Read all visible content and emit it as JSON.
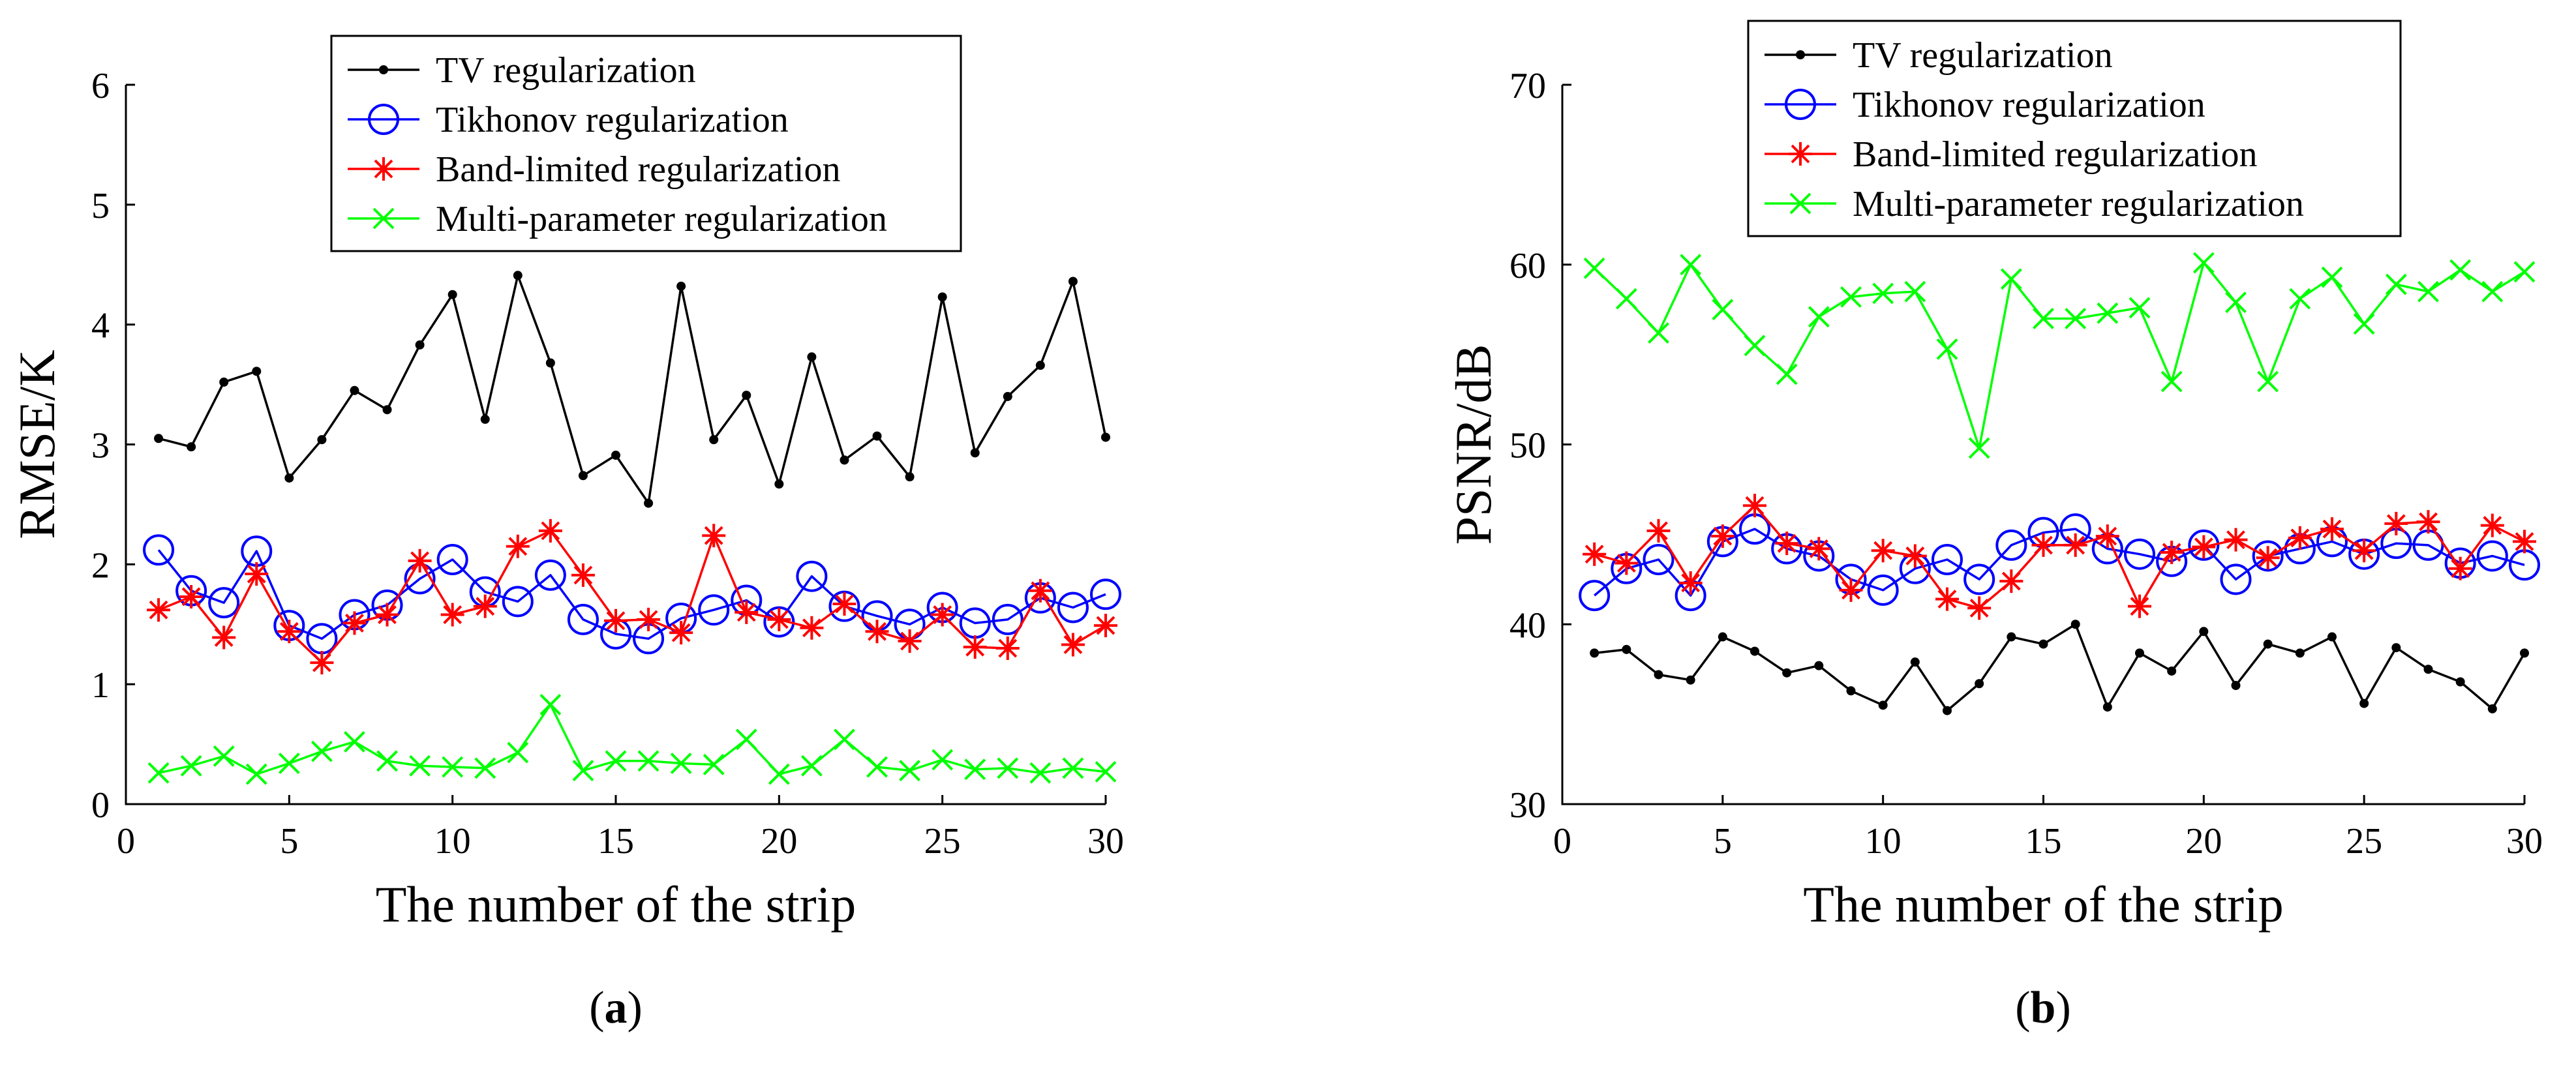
{
  "chart_data": [
    {
      "type": "line",
      "id": "a",
      "caption_letter": "a",
      "xlabel": "The number of the strip",
      "ylabel": "RMSE/K",
      "xlim": [
        0,
        30
      ],
      "ylim": [
        0,
        6
      ],
      "xticks": [
        0,
        5,
        10,
        15,
        20,
        25,
        30
      ],
      "yticks": [
        0,
        1,
        2,
        3,
        4,
        5,
        6
      ],
      "legend_position": "top-center",
      "x": [
        1,
        2,
        3,
        4,
        5,
        6,
        7,
        8,
        9,
        10,
        11,
        12,
        13,
        14,
        15,
        16,
        17,
        18,
        19,
        20,
        21,
        22,
        23,
        24,
        25,
        26,
        27,
        28,
        29,
        30
      ],
      "series": [
        {
          "name": "TV regularization",
          "color": "#000000",
          "marker": "dot",
          "values": [
            3.05,
            2.98,
            3.52,
            3.61,
            2.72,
            3.04,
            3.45,
            3.29,
            3.83,
            4.25,
            3.21,
            4.41,
            3.68,
            2.74,
            2.91,
            2.51,
            4.32,
            3.04,
            3.41,
            2.67,
            3.73,
            2.87,
            3.07,
            2.73,
            4.23,
            2.93,
            3.4,
            3.66,
            4.36,
            3.06
          ]
        },
        {
          "name": "Tikhonov regularization",
          "color": "#0000ff",
          "marker": "circle",
          "values": [
            2.12,
            1.78,
            1.68,
            2.11,
            1.49,
            1.38,
            1.58,
            1.66,
            1.88,
            2.04,
            1.77,
            1.69,
            1.91,
            1.54,
            1.42,
            1.38,
            1.55,
            1.62,
            1.7,
            1.52,
            1.9,
            1.65,
            1.57,
            1.5,
            1.64,
            1.51,
            1.54,
            1.72,
            1.64,
            1.75
          ]
        },
        {
          "name": "Band-limited regularization",
          "color": "#ff0000",
          "marker": "asterisk",
          "values": [
            1.62,
            1.73,
            1.39,
            1.92,
            1.44,
            1.18,
            1.51,
            1.58,
            2.03,
            1.58,
            1.65,
            2.15,
            2.28,
            1.91,
            1.53,
            1.54,
            1.43,
            2.24,
            1.6,
            1.54,
            1.47,
            1.67,
            1.44,
            1.36,
            1.58,
            1.31,
            1.3,
            1.78,
            1.33,
            1.49
          ]
        },
        {
          "name": "Multi-parameter regularization",
          "color": "#00ff00",
          "marker": "x",
          "values": [
            0.26,
            0.32,
            0.4,
            0.25,
            0.34,
            0.44,
            0.52,
            0.36,
            0.32,
            0.31,
            0.3,
            0.43,
            0.83,
            0.28,
            0.36,
            0.36,
            0.34,
            0.33,
            0.54,
            0.25,
            0.32,
            0.54,
            0.31,
            0.28,
            0.37,
            0.29,
            0.3,
            0.26,
            0.3,
            0.27
          ]
        }
      ]
    },
    {
      "type": "line",
      "id": "b",
      "caption_letter": "b",
      "xlabel": "The number of the strip",
      "ylabel": "PSNR/dB",
      "xlim": [
        0,
        30
      ],
      "ylim": [
        30,
        70
      ],
      "xticks": [
        0,
        5,
        10,
        15,
        20,
        25,
        30
      ],
      "yticks": [
        30,
        40,
        50,
        60,
        70
      ],
      "legend_position": "top-center",
      "x": [
        1,
        2,
        3,
        4,
        5,
        6,
        7,
        8,
        9,
        10,
        11,
        12,
        13,
        14,
        15,
        16,
        17,
        18,
        19,
        20,
        21,
        22,
        23,
        24,
        25,
        26,
        27,
        28,
        29,
        30
      ],
      "series": [
        {
          "name": "TV regularization",
          "color": "#000000",
          "marker": "dot",
          "values": [
            38.4,
            38.6,
            37.2,
            36.9,
            39.3,
            38.5,
            37.3,
            37.7,
            36.3,
            35.5,
            37.9,
            35.2,
            36.7,
            39.3,
            38.9,
            40.0,
            35.4,
            38.4,
            37.4,
            39.6,
            36.6,
            38.9,
            38.4,
            39.3,
            35.6,
            38.7,
            37.5,
            36.8,
            35.3,
            38.4
          ]
        },
        {
          "name": "Tikhonov regularization",
          "color": "#0000ff",
          "marker": "circle",
          "values": [
            41.6,
            43.1,
            43.6,
            41.6,
            44.6,
            45.3,
            44.2,
            43.8,
            42.5,
            41.9,
            43.1,
            43.6,
            42.5,
            44.4,
            45.1,
            45.3,
            44.2,
            43.9,
            43.5,
            44.4,
            42.5,
            43.8,
            44.2,
            44.6,
            43.9,
            44.5,
            44.4,
            43.4,
            43.8,
            43.3
          ]
        },
        {
          "name": "Band-limited regularization",
          "color": "#ff0000",
          "marker": "asterisk",
          "values": [
            43.9,
            43.4,
            45.2,
            42.3,
            44.9,
            46.6,
            44.5,
            44.2,
            41.9,
            44.1,
            43.8,
            41.4,
            40.9,
            42.4,
            44.4,
            44.4,
            44.9,
            41.0,
            44.0,
            44.3,
            44.7,
            43.7,
            44.8,
            45.3,
            44.1,
            45.6,
            45.7,
            43.1,
            45.5,
            44.6
          ]
        },
        {
          "name": "Multi-parameter regularization",
          "color": "#00ff00",
          "marker": "x",
          "values": [
            59.8,
            58.1,
            56.2,
            60.0,
            57.5,
            55.5,
            53.9,
            57.1,
            58.2,
            58.4,
            58.5,
            55.3,
            49.8,
            59.2,
            57.0,
            57.0,
            57.3,
            57.6,
            53.5,
            60.1,
            57.9,
            53.5,
            58.1,
            59.3,
            56.7,
            58.9,
            58.5,
            59.7,
            58.5,
            59.6
          ]
        }
      ]
    }
  ]
}
